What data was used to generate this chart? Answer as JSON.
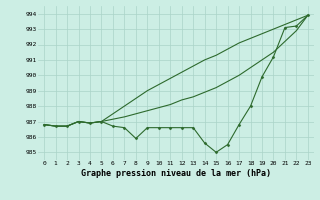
{
  "background_color": "#cceee4",
  "grid_color": "#aad4c8",
  "line_color": "#2d6a2d",
  "title": "Graphe pression niveau de la mer (hPa)",
  "xlim": [
    -0.5,
    23.5
  ],
  "ylim": [
    984.5,
    994.5
  ],
  "yticks": [
    985,
    986,
    987,
    988,
    989,
    990,
    991,
    992,
    993,
    994
  ],
  "xticks": [
    0,
    1,
    2,
    3,
    4,
    5,
    6,
    7,
    8,
    9,
    10,
    11,
    12,
    13,
    14,
    15,
    16,
    17,
    18,
    19,
    20,
    21,
    22,
    23
  ],
  "xtick_labels": [
    "0",
    "1",
    "2",
    "3",
    "4",
    "5",
    "6",
    "7",
    "8",
    "9",
    "10",
    "11",
    "12",
    "13",
    "14",
    "15",
    "16",
    "17",
    "18",
    "19",
    "20",
    "21",
    "22",
    "23"
  ],
  "series": [
    {
      "y": [
        986.8,
        986.7,
        986.7,
        987.0,
        986.9,
        987.0,
        986.7,
        986.6,
        985.9,
        986.6,
        986.6,
        986.6,
        986.6,
        986.6,
        985.6,
        985.0,
        985.5,
        986.8,
        988.0,
        989.9,
        991.2,
        993.1,
        993.2,
        993.9
      ],
      "marker": "D",
      "markersize": 1.5,
      "linewidth": 0.8
    },
    {
      "y": [
        986.8,
        986.7,
        986.7,
        987.0,
        986.9,
        987.0,
        987.15,
        987.3,
        987.5,
        987.7,
        987.9,
        988.1,
        988.4,
        988.6,
        988.9,
        989.2,
        989.6,
        990.0,
        990.5,
        991.0,
        991.5,
        992.2,
        992.9,
        993.9
      ],
      "marker": null,
      "markersize": 0,
      "linewidth": 0.8
    },
    {
      "y": [
        986.8,
        986.7,
        986.7,
        987.0,
        986.9,
        987.0,
        987.5,
        988.0,
        988.5,
        989.0,
        989.4,
        989.8,
        990.2,
        990.6,
        991.0,
        991.3,
        991.7,
        992.1,
        992.4,
        992.7,
        993.0,
        993.3,
        993.6,
        993.9
      ],
      "marker": null,
      "markersize": 0,
      "linewidth": 0.8
    }
  ]
}
